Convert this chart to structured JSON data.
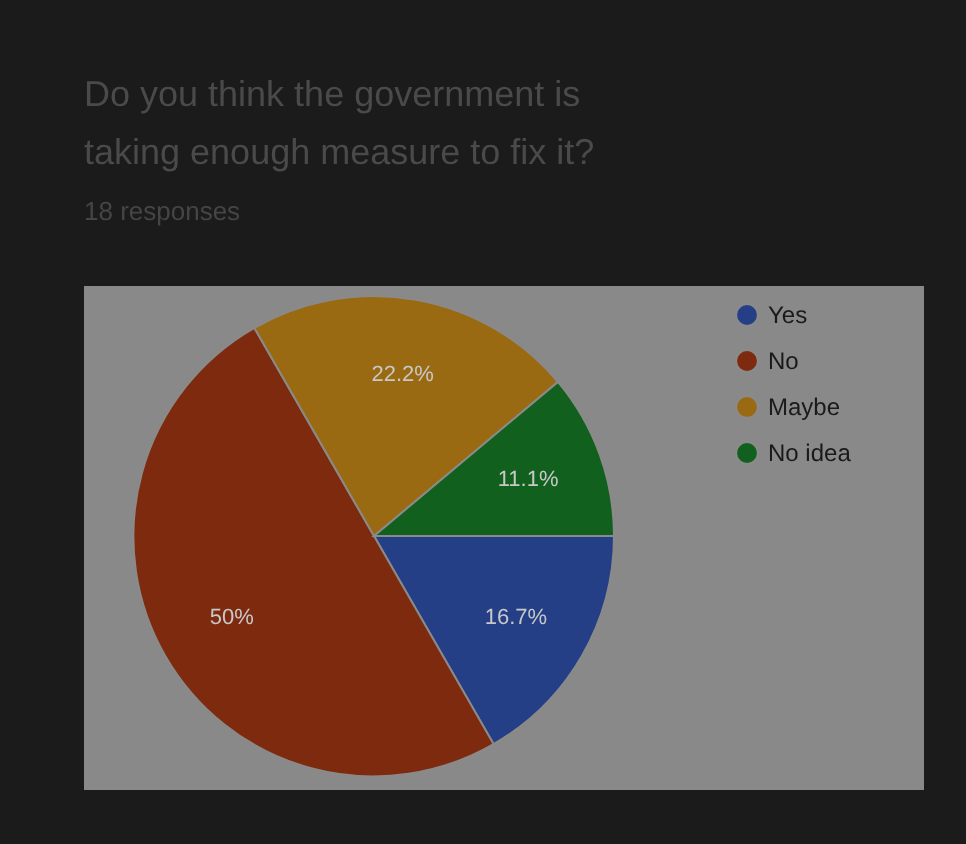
{
  "chart_data": {
    "type": "pie",
    "title": "Do you think the government is taking enough measure to fix it?",
    "subtitle": "18 responses",
    "categories": [
      "Yes",
      "No",
      "Maybe",
      "No idea"
    ],
    "values": [
      16.7,
      50,
      22.2,
      11.1
    ],
    "value_labels": [
      "16.7%",
      "50%",
      "22.2%",
      "11.1%"
    ],
    "colors": [
      "#243f85",
      "#7d2a0e",
      "#9a6a12",
      "#12601e"
    ],
    "legend": "top right"
  }
}
